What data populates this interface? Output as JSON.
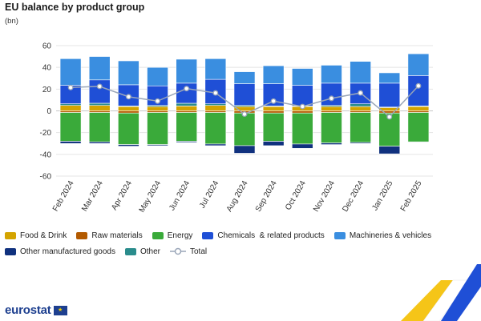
{
  "title": "EU balance by product group",
  "unit": "(bn)",
  "legend": {
    "food": "Food & Drink",
    "raw": "Raw materials",
    "energy": "Energy",
    "chem": "Chemicals  & related products",
    "mach": "Machineries & vehicles",
    "other_manuf": "Other manufactured goods",
    "other": "Other",
    "total": "Total"
  },
  "logo": {
    "text": "eurostat"
  },
  "colors": {
    "food": "#d4a400",
    "raw": "#b35a00",
    "energy": "#3aaa3a",
    "chem": "#1f4fd6",
    "mach": "#3a8ee0",
    "other_manuf": "#10317e",
    "other": "#2a8c8c",
    "total_line": "#9aa6b8",
    "total_marker": "#ffffff",
    "grid": "#e4e4e4"
  },
  "chart_data": {
    "type": "bar",
    "stacked": true,
    "categories": [
      "Feb 2024",
      "Mar 2024",
      "Apr 2024",
      "May 2024",
      "Jun 2024",
      "Jul 2024",
      "Aug 2024",
      "Sep 2024",
      "Oct 2024",
      "Nov 2024",
      "Dec 2024",
      "Jan 2025",
      "Feb 2025"
    ],
    "ylim": [
      -60,
      60
    ],
    "yticks": [
      -60,
      -40,
      -20,
      0,
      20,
      40,
      60
    ],
    "grid": true,
    "legend_position": "bottom",
    "series": [
      {
        "key": "food",
        "name": "Food & Drink",
        "values": [
          5,
          5,
          4,
          4,
          4.5,
          5,
          4,
          4,
          4,
          4,
          4,
          3,
          4
        ]
      },
      {
        "key": "raw",
        "name": "Raw materials",
        "values": [
          -1.5,
          -1.5,
          -2,
          -1.5,
          -1.5,
          -1.5,
          -2,
          -2,
          -2,
          -1.5,
          -1.5,
          -2,
          -1.5
        ]
      },
      {
        "key": "energy",
        "name": "Energy",
        "values": [
          -26.5,
          -27,
          -29,
          -29.5,
          -26.5,
          -29,
          -30,
          -26,
          -28.5,
          -28,
          -27.5,
          -30.5,
          -27
        ]
      },
      {
        "key": "chem",
        "name": "Chemicals  & related products",
        "values": [
          17,
          21.5,
          19.5,
          18,
          18.5,
          22.5,
          20,
          20.5,
          19,
          20.5,
          19,
          22,
          28
        ]
      },
      {
        "key": "mach",
        "name": "Machineries & vehicles",
        "values": [
          24.5,
          21.5,
          22,
          17,
          22,
          19,
          11,
          16.5,
          15.5,
          16.5,
          20,
          9.5,
          20
        ]
      },
      {
        "key": "other_manuf",
        "name": "Other manufactured goods",
        "values": [
          -2,
          -1.5,
          -1.5,
          -1,
          -1,
          -1.5,
          -7,
          -4,
          -4,
          -1.5,
          -1,
          -7,
          -0.5
        ]
      },
      {
        "key": "other",
        "name": "Other",
        "values": [
          1.5,
          2,
          0.5,
          1,
          2.5,
          1.5,
          1,
          0.5,
          0.5,
          1,
          2.5,
          0.5,
          0.5
        ]
      }
    ],
    "total": {
      "name": "Total",
      "values": [
        21.5,
        22.5,
        13,
        9,
        20.5,
        16.5,
        -3,
        9,
        4,
        11.5,
        16.5,
        -5.5,
        23
      ]
    }
  }
}
